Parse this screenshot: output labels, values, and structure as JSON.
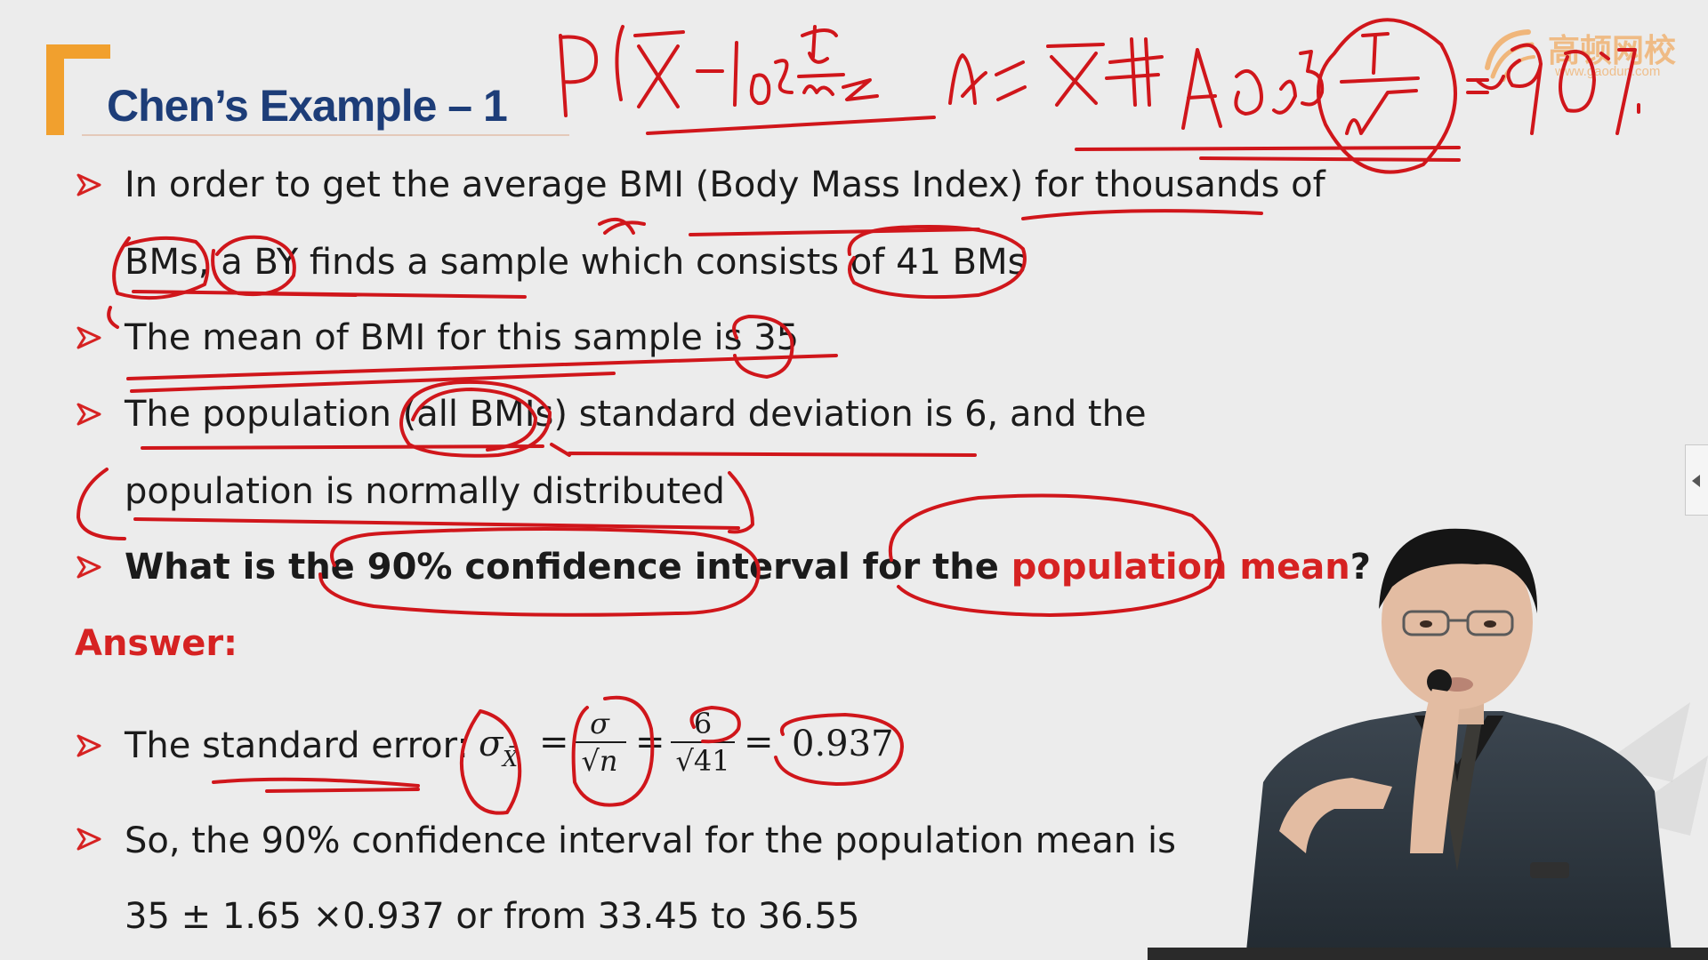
{
  "slide": {
    "title": "Chen’s Example – 1",
    "logo": {
      "name_cn": "高顿网校",
      "url": "www.gaodun.com",
      "icon": "gaodun-logo-icon"
    },
    "bullets": [
      {
        "parts": [
          {
            "text": "In order to get the average BMI (Body Mass Index) for thousands of"
          }
        ]
      },
      {
        "parts": [
          {
            "text": "BMs, a BY finds a sample which consists of 41 BMs"
          }
        ]
      },
      {
        "parts": [
          {
            "text": "The mean of BMI for this sample is 35"
          }
        ]
      },
      {
        "parts": [
          {
            "text": "The population (all BMIs) standard deviation is 6, and the"
          }
        ]
      },
      {
        "parts": [
          {
            "text": "population is normally distributed"
          }
        ]
      },
      {
        "parts": [
          {
            "text": "What is the 90% confidence interval for the "
          },
          {
            "text": "population mean"
          },
          {
            "text": "?"
          }
        ]
      }
    ],
    "answer_label": "Answer:",
    "standard_error": {
      "label": "The standard error:",
      "sigma_xbar": "σ",
      "sigma_sub": "X̄",
      "eq1": "=",
      "frac1_num": "σ",
      "frac1_den": "√n",
      "eq2": "=",
      "frac2_num": "6",
      "frac2_den": "√41",
      "eq3": "=",
      "result": "0.937"
    },
    "conclusion_line1": "So, the 90% confidence interval for the population mean is",
    "conclusion_line2": "35 ± 1.65 ×0.937  or  from 33.45 to 36.55"
  },
  "colors": {
    "title": "#1d3d78",
    "accent_orange": "#f1a02e",
    "answer_red": "#d62222",
    "ink_red": "#d0161b",
    "background": "#ececec"
  },
  "annotations": {
    "handwriting": "P( X̄ - 1.65 σ/√n ≤ μ ≤ X̄ + 1.65 σ/√n ) = 90%"
  }
}
